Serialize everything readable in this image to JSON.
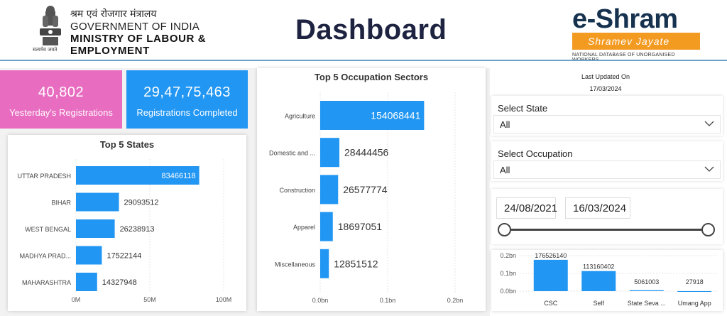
{
  "header": {
    "hindi": "श्रम एवं रोजगार मंत्रालय",
    "gov": "GOVERNMENT OF INDIA",
    "ministry_line1": "MINISTRY OF LABOUR &",
    "ministry_line2": "EMPLOYMENT",
    "emblem_caption": "सत्यमेव जयते",
    "title": "Dashboard",
    "brand_name": "e-Shram",
    "brand_tagline": "Shramev Jayate",
    "brand_sub": "NATIONAL DATABASE OF UNORGANISED WORKERS"
  },
  "kpis": [
    {
      "value": "40,802",
      "label": "Yesterday's Registrations",
      "color": "#e86cbf"
    },
    {
      "value": "29,47,75,463",
      "label": "Registrations Completed",
      "color": "#2196f3"
    }
  ],
  "last_updated": {
    "label": "Last Updated On",
    "date": "17/03/2024"
  },
  "filters": {
    "state": {
      "label": "Select State",
      "value": "All"
    },
    "occupation": {
      "label": "Select Occupation",
      "value": "All"
    },
    "date_range": {
      "start": "24/08/2021",
      "end": "16/03/2024"
    }
  },
  "colors": {
    "bar": "#2196f3",
    "pink": "#e86cbf"
  },
  "chart_data": [
    {
      "id": "states",
      "type": "bar",
      "orientation": "horizontal",
      "title": "Top 5 States",
      "categories": [
        "UTTAR PRADESH",
        "BIHAR",
        "WEST BENGAL",
        "MADHYA PRAD...",
        "MAHARASHTRA"
      ],
      "values": [
        83466118,
        29093512,
        26238913,
        17522144,
        14327948
      ],
      "value_labels": [
        "83466118",
        "29093512",
        "26238913",
        "17522144",
        "14327948"
      ],
      "x_ticks": [
        0,
        50000000,
        100000000
      ],
      "x_tick_labels": [
        "0M",
        "50M",
        "100M"
      ],
      "xlim": [
        0,
        100000000
      ],
      "grid": true
    },
    {
      "id": "occupations",
      "type": "bar",
      "orientation": "horizontal",
      "title": "Top 5 Occupation Sectors",
      "categories": [
        "Agriculture",
        "Domestic and ...",
        "Construction",
        "Apparel",
        "Miscellaneous"
      ],
      "values": [
        154068441,
        28444456,
        26577774,
        18697051,
        12851512
      ],
      "value_labels": [
        "154068441",
        "28444456",
        "26577774",
        "18697051",
        "12851512"
      ],
      "x_ticks": [
        0,
        100000000,
        200000000
      ],
      "x_tick_labels": [
        "0.0bn",
        "0.1bn",
        "0.2bn"
      ],
      "xlim": [
        0,
        200000000
      ],
      "grid": true
    },
    {
      "id": "channels",
      "type": "bar",
      "orientation": "vertical",
      "categories": [
        "CSC",
        "Self",
        "State Seva ...",
        "Umang App"
      ],
      "values": [
        176526140,
        113160402,
        5061003,
        27918
      ],
      "value_labels": [
        "176526140",
        "113160402",
        "5061003",
        "27918"
      ],
      "y_ticks": [
        0,
        100000000,
        200000000
      ],
      "y_tick_labels": [
        "0.0bn",
        "0.1bn",
        "0.2bn"
      ],
      "ylim": [
        0,
        200000000
      ],
      "grid": true
    }
  ]
}
